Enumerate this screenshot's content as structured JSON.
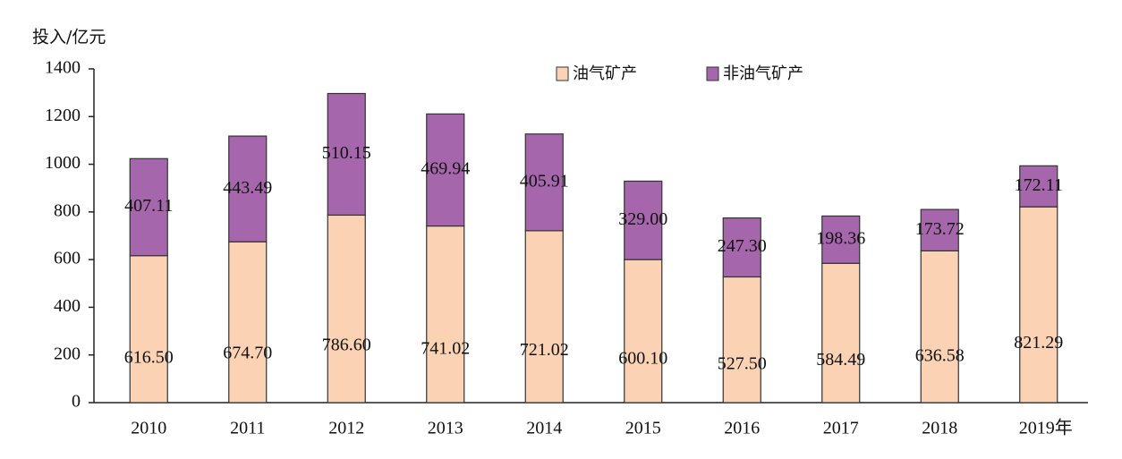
{
  "chart_data": {
    "type": "stacked_bar",
    "y_axis_label": "投入/亿元",
    "categories": [
      "2010",
      "2011",
      "2012",
      "2013",
      "2014",
      "2015",
      "2016",
      "2017",
      "2018",
      "2019年"
    ],
    "series": [
      {
        "name": "油气矿产",
        "color": "#fbd3b4",
        "values": [
          616.5,
          674.7,
          786.6,
          741.02,
          721.02,
          600.1,
          527.5,
          584.49,
          636.58,
          821.29
        ],
        "value_labels": [
          "616.50",
          "674.70",
          "786.60",
          "741.02",
          "721.02",
          "600.10",
          "527.50",
          "584.49",
          "636.58",
          "821.29"
        ]
      },
      {
        "name": "非油气矿产",
        "color": "#a566ac",
        "values": [
          407.11,
          443.49,
          510.15,
          469.94,
          405.91,
          329.0,
          247.3,
          198.36,
          173.72,
          172.11
        ],
        "value_labels": [
          "407.11",
          "443.49",
          "510.15",
          "469.94",
          "405.91",
          "329.00",
          "247.30",
          "198.36",
          "173.72",
          "172.11"
        ]
      }
    ],
    "ylim": [
      0,
      1400
    ],
    "yticks": [
      0,
      200,
      400,
      600,
      800,
      1000,
      1200,
      1400
    ]
  }
}
